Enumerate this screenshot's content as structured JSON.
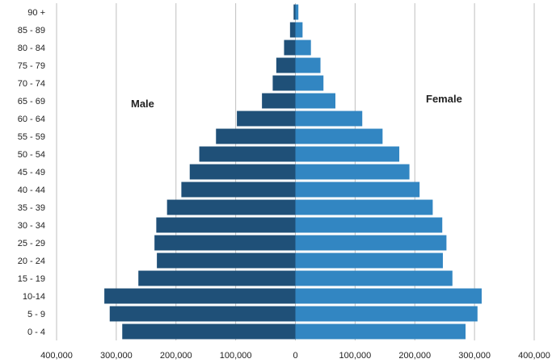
{
  "chart_data": {
    "type": "bar",
    "orientation": "horizontal",
    "subtype": "population-pyramid",
    "title": "",
    "xlabel": "",
    "ylabel": "",
    "categories": [
      "0 - 4",
      "5 - 9",
      "10-14",
      "15 - 19",
      "20 - 24",
      "25 - 29",
      "30 - 34",
      "35 - 39",
      "40 - 44",
      "45 - 49",
      "50 - 54",
      "55 - 59",
      "60 - 64",
      "65 - 69",
      "70 - 74",
      "75 - 79",
      "80 - 84",
      "85 - 89",
      "90 +"
    ],
    "series": [
      {
        "name": "Male",
        "color": "#1f5078",
        "side": "left",
        "values": [
          290000,
          311000,
          320000,
          263000,
          232000,
          236000,
          233000,
          215000,
          191000,
          177000,
          161000,
          133000,
          98000,
          56000,
          38000,
          32000,
          19000,
          9000,
          3000
        ]
      },
      {
        "name": "Female",
        "color": "#3286c2",
        "side": "right",
        "values": [
          285000,
          305000,
          312000,
          263000,
          247000,
          253000,
          246000,
          230000,
          208000,
          191000,
          174000,
          146000,
          112000,
          67000,
          47000,
          42000,
          26000,
          12000,
          5000
        ]
      }
    ],
    "xlim": [
      -400000,
      400000
    ],
    "xticks": [
      -400000,
      -300000,
      -200000,
      -100000,
      0,
      100000,
      200000,
      300000,
      400000
    ],
    "xtick_labels": [
      "400,000",
      "300,000",
      "200,000",
      "100,000",
      "0",
      "100,000",
      "200,000",
      "300,000",
      "400,000"
    ],
    "grid": "vertical",
    "legend": "none"
  },
  "labels": {
    "male": "Male",
    "female": "Female"
  }
}
